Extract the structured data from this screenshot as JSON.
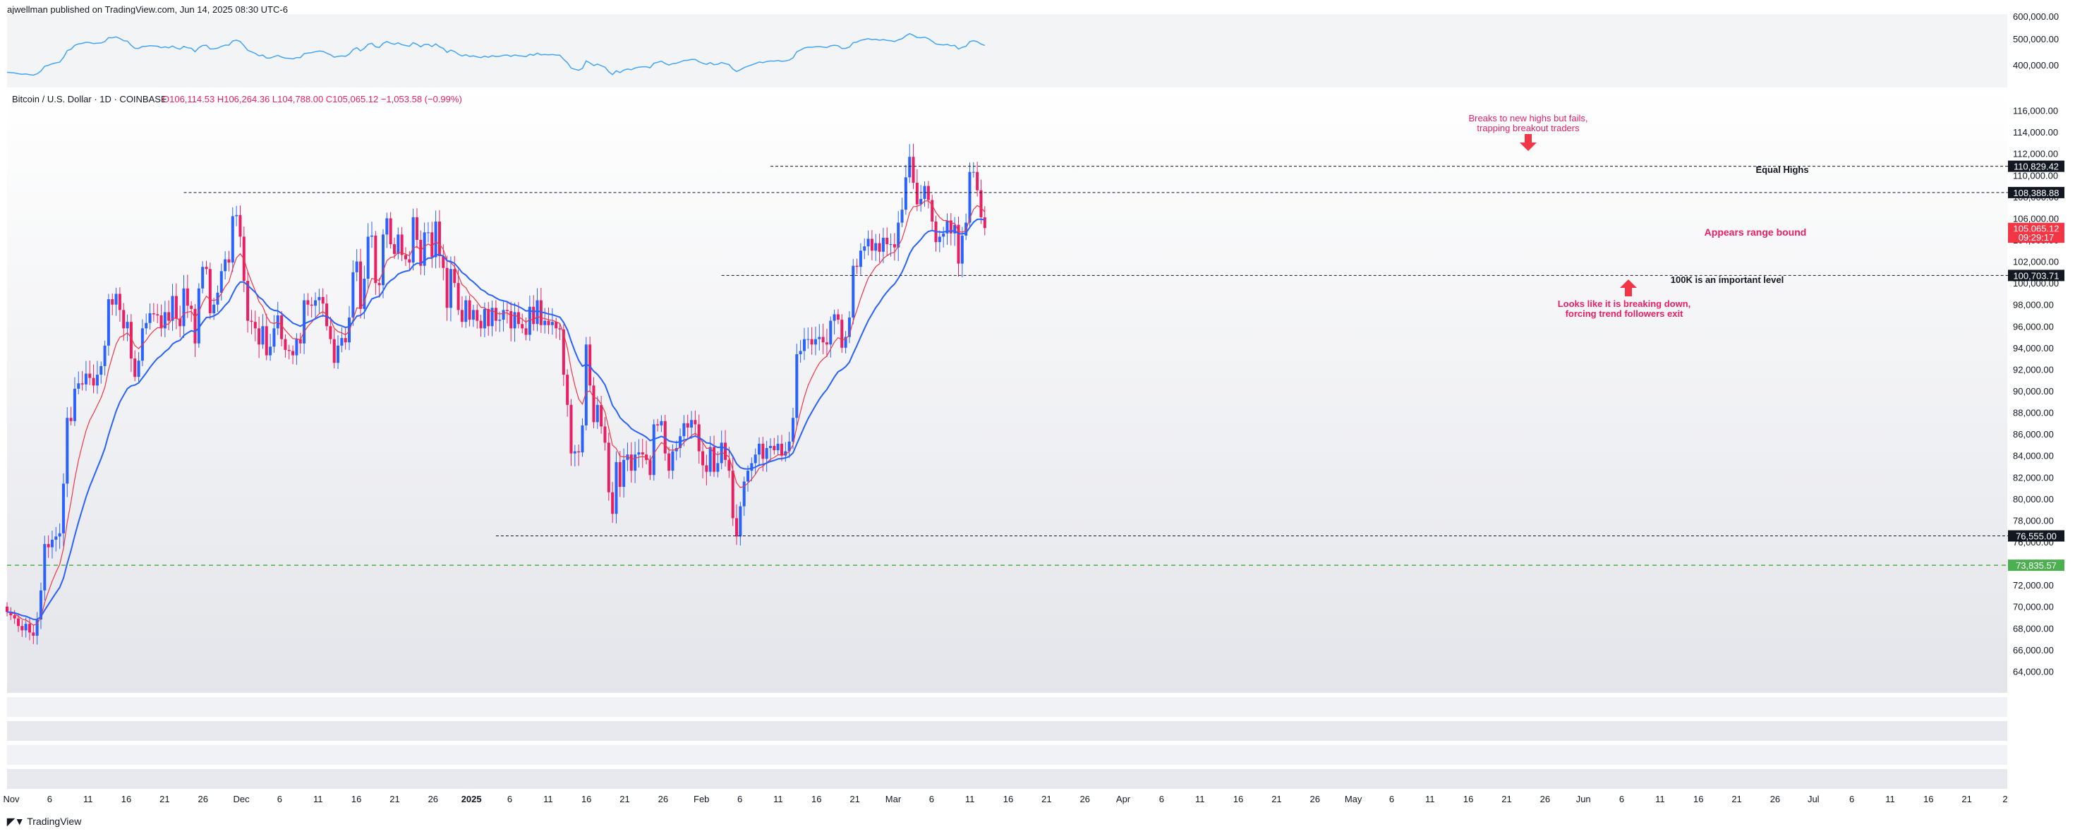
{
  "header": {
    "published": "ajwellman published on TradingView.com, Jun 14, 2025 08:30 UTC-6"
  },
  "legend": {
    "symbol": "Bitcoin / U.S. Dollar · 1D · COINBASE",
    "ohlc": "O106,114.53  H106,264.36  L104,788.00  C105,065.12  −1,053.58 (−0.99%)"
  },
  "footer": {
    "brand": "TradingView"
  },
  "colors": {
    "up": "#2962ff",
    "down": "#e91e63",
    "ema_fast": "#f23645",
    "ema_slow": "#2962ff",
    "annotation": "#e91e63",
    "support_green": "#4caf50"
  },
  "chart_data": {
    "type": "candlestick",
    "y_axis": {
      "ticks": [
        "116,000.00",
        "114,000.00",
        "112,000.00",
        "110,000.00",
        "108,000.00",
        "106,000.00",
        "104,000.00",
        "102,000.00",
        "100,000.00",
        "98,000.00",
        "96,000.00",
        "94,000.00",
        "92,000.00",
        "90,000.00",
        "88,000.00",
        "86,000.00",
        "84,000.00",
        "82,000.00",
        "80,000.00",
        "78,000.00",
        "76,000.00",
        "74,000.00",
        "72,000.00",
        "70,000.00",
        "68,000.00",
        "66,000.00",
        "64,000.00"
      ],
      "range": [
        62000,
        118000
      ]
    },
    "x_axis": {
      "ticks": [
        "Nov",
        "6",
        "11",
        "16",
        "21",
        "26",
        "Dec",
        "6",
        "11",
        "16",
        "21",
        "26",
        "2025",
        "6",
        "11",
        "16",
        "21",
        "26",
        "Feb",
        "6",
        "11",
        "16",
        "21",
        "Mar",
        "6",
        "11",
        "16",
        "21",
        "26",
        "Apr",
        "6",
        "11",
        "16",
        "21",
        "26",
        "May",
        "6",
        "11",
        "16",
        "21",
        "26",
        "Jun",
        "6",
        "11",
        "16",
        "21",
        "26",
        "Jul",
        "6",
        "11",
        "16",
        "21",
        "2"
      ]
    },
    "price_labels": [
      {
        "text": "110,829.42",
        "value": 110829.42,
        "style": "dark"
      },
      {
        "text": "108,388.88",
        "value": 108388.88,
        "style": "dark"
      },
      {
        "text": "105,065.12",
        "value": 105065.12,
        "style": "red"
      },
      {
        "text": "09:29:17",
        "value": 104250,
        "style": "red"
      },
      {
        "text": "100,703.71",
        "value": 100703.71,
        "style": "dark"
      },
      {
        "text": "76,555.00",
        "value": 76555,
        "style": "dark"
      },
      {
        "text": "73,835.57",
        "value": 73835.57,
        "style": "green"
      }
    ],
    "levels": [
      {
        "value": 110829.42,
        "from": "2025-05-22",
        "dash": "dashed"
      },
      {
        "value": 108388.88,
        "from": "2024-12-17",
        "dash": "dashed"
      },
      {
        "value": 100703.71,
        "from": "2025-05-09",
        "dash": "dashed"
      },
      {
        "value": 76555,
        "from": "2025-03-10",
        "dash": "dashed"
      },
      {
        "value": 73835.57,
        "from": "2024-10-31",
        "dash": "green"
      }
    ],
    "annotations": [
      {
        "text": [
          "Breaks to new highs but fails,",
          "trapping breakout traders"
        ],
        "color": "red"
      },
      {
        "text": [
          "Equal Highs"
        ],
        "color": "dark"
      },
      {
        "text": [
          "Appears range bound"
        ],
        "color": "red"
      },
      {
        "text": [
          "100K is an important level"
        ],
        "color": "dark"
      },
      {
        "text": [
          "Looks like it is breaking down,",
          "forcing trend followers exit"
        ],
        "color": "red"
      }
    ],
    "closes": [
      69500,
      69200,
      68900,
      68200,
      67800,
      68400,
      67600,
      67300,
      68800,
      71500,
      75800,
      75500,
      76200,
      76500,
      76800,
      81400,
      87500,
      87200,
      90200,
      90700,
      90600,
      91600,
      91200,
      90500,
      91500,
      92300,
      94200,
      98500,
      98000,
      99000,
      97500,
      95800,
      96400,
      93000,
      91300,
      92800,
      95800,
      96300,
      97200,
      97100,
      97000,
      95800,
      97300,
      96500,
      98800,
      96700,
      96000,
      99500,
      97900,
      97600,
      94400,
      99500,
      101500,
      101300,
      97200,
      98000,
      99100,
      101100,
      102200,
      101900,
      106200,
      106300,
      104300,
      100200,
      96500,
      96400,
      95800,
      94300,
      96000,
      93300,
      94100,
      95800,
      97000,
      94800,
      93800,
      93700,
      93300,
      94800,
      94400,
      98400,
      98000,
      97900,
      98400,
      98700,
      98100,
      96000,
      94800,
      92600,
      94200,
      94900,
      94500,
      96800,
      101000,
      102000,
      97600,
      100400,
      104300,
      104400,
      100000,
      99800,
      104500,
      106000,
      103600,
      102700,
      104500,
      102600,
      102200,
      101900,
      106100,
      104000,
      101600,
      104700,
      104700,
      102400,
      105700,
      102500,
      101400,
      97700,
      101300,
      100000,
      97500,
      96400,
      98400,
      96600,
      97500,
      96500,
      95800,
      97600,
      96000,
      97700,
      96500,
      96600,
      97500,
      97400,
      95800,
      97300,
      96200,
      95800,
      95200,
      97800,
      96200,
      98400,
      96100,
      96500,
      96100,
      96400,
      95800,
      95700,
      91500,
      88700,
      84200,
      84400,
      84300,
      86800,
      94300,
      90500,
      87100,
      88700,
      86700,
      85200,
      80600,
      78600,
      83400,
      81100,
      83600,
      84100,
      82600,
      84100,
      84300,
      84100,
      83600,
      82200,
      86900,
      86800,
      87200,
      84200,
      82600,
      84400,
      84700,
      85800,
      87000,
      86600,
      87300,
      86900,
      84400,
      83100,
      82500,
      84800,
      82500,
      83300,
      85200,
      83600,
      82600,
      78200,
      76500,
      79300,
      81600,
      82600,
      83300,
      84100,
      85100,
      83700,
      84700,
      84900,
      84500,
      85100,
      84000,
      84400,
      85300,
      87500,
      93400,
      93700,
      94800,
      94800,
      94300,
      94800,
      95000,
      94500,
      94300,
      96500,
      97100,
      96600,
      94000,
      95000,
      96800,
      101600,
      101500,
      103000,
      103400,
      104100,
      103000,
      103700,
      102900,
      104200,
      103600,
      103600,
      103300,
      105600,
      106800,
      109800,
      111700,
      109300,
      107300,
      107800,
      109000,
      107700,
      105700,
      103800,
      104300,
      104600,
      105800,
      104600,
      105400,
      101800,
      104400,
      105600,
      110300,
      110300,
      108600,
      106100,
      105100
    ],
    "start_date": "2024-10-31"
  }
}
